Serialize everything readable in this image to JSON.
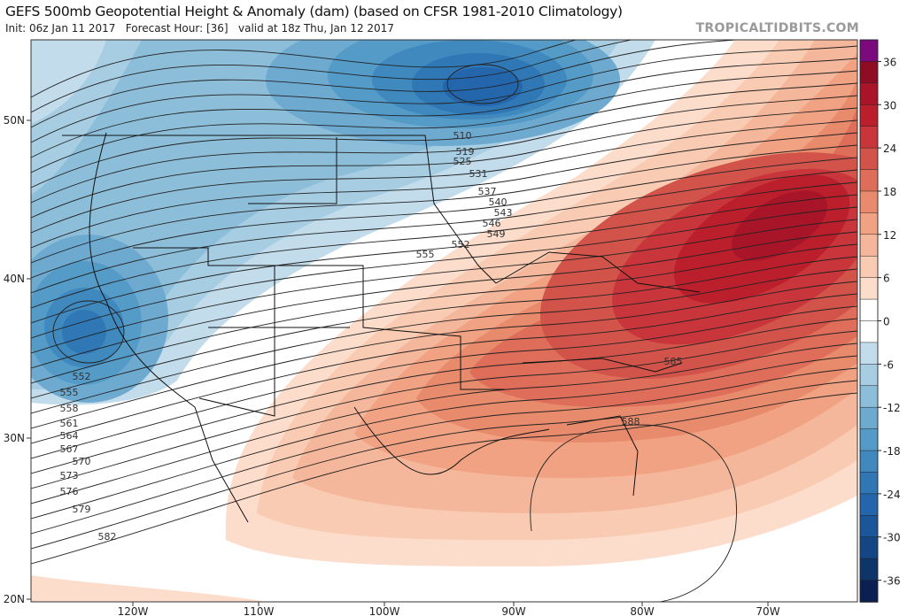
{
  "header": {
    "title": "GEFS 500mb Geopotential Height & Anomaly (dam) (based on CFSR 1981-2010 Climatology)",
    "subtitle": "Init: 06z Jan 11 2017   Forecast Hour: [36]   valid at 18z Thu, Jan 12 2017",
    "brand": "TROPICALTIDBITS.COM"
  },
  "map": {
    "lat_labels": [
      "50N",
      "40N",
      "30N",
      "20N"
    ],
    "lon_labels": [
      "120W",
      "110W",
      "100W",
      "90W",
      "80W",
      "70W"
    ],
    "contour_labels": [
      "510",
      "519",
      "525",
      "531",
      "537",
      "540",
      "543",
      "546",
      "549",
      "552",
      "555",
      "552",
      "555",
      "558",
      "561",
      "564",
      "567",
      "570",
      "573",
      "576",
      "579",
      "582",
      "585",
      "588"
    ]
  },
  "colorbar": {
    "labels": [
      "36",
      "30",
      "24",
      "18",
      "12",
      "6",
      "0",
      "-6",
      "-12",
      "-18",
      "-24",
      "-30",
      "-36"
    ],
    "colors": [
      "#7b0a7e",
      "#8e0d24",
      "#a81529",
      "#bb1f2c",
      "#c8353a",
      "#d2534a",
      "#de6e5a",
      "#e88a6c",
      "#f0a283",
      "#f5b79b",
      "#f9cbb3",
      "#fcdccb",
      "#ffffff",
      "#ffffff",
      "#c2dceb",
      "#a7cde3",
      "#8dbed9",
      "#6eaad0",
      "#559bc8",
      "#3f89bf",
      "#2f77b5",
      "#2466ab",
      "#1b559a",
      "#144584",
      "#0e356a",
      "#0a1f52"
    ]
  }
}
